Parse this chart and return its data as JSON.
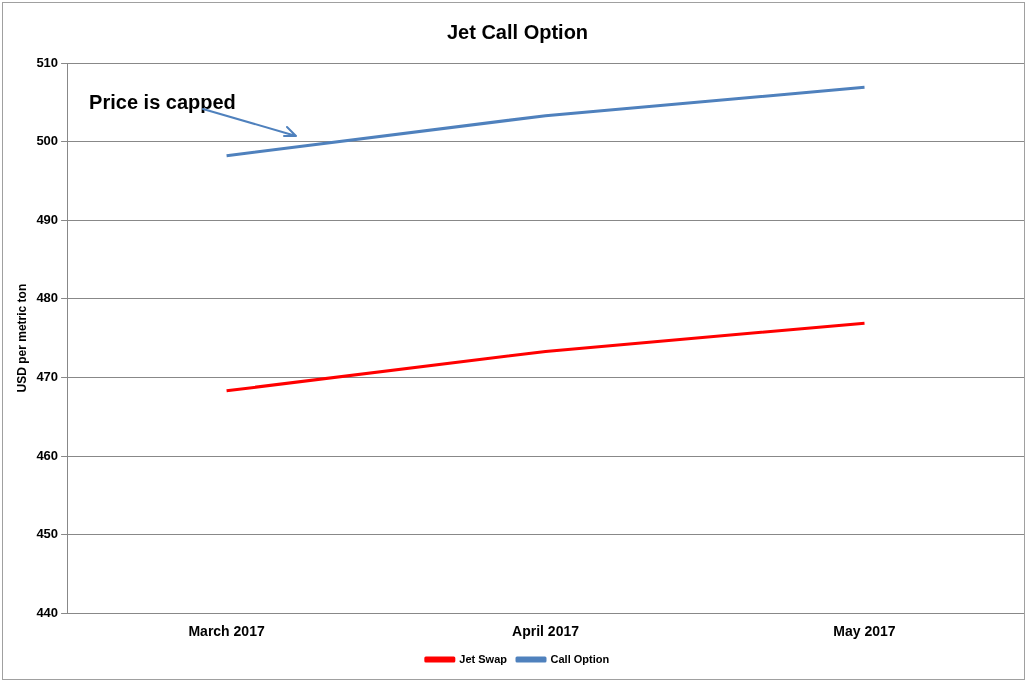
{
  "chart_data": {
    "type": "line",
    "title": "Jet Call Option",
    "ylabel": "USD per metric ton",
    "categories": [
      "March 2017",
      "April 2017",
      "May 2017"
    ],
    "series": [
      {
        "name": "Jet Swap",
        "color": "#ff0000",
        "values": [
          468.3,
          473.3,
          476.9
        ]
      },
      {
        "name": "Call Option",
        "color": "#4f81bd",
        "values": [
          498.2,
          503.3,
          506.9
        ]
      }
    ],
    "ylim": [
      440,
      510
    ],
    "yticks": [
      440,
      450,
      460,
      470,
      480,
      490,
      500,
      510
    ],
    "grid": "y",
    "legend": "bottom",
    "marker": "none",
    "annotations": [
      "Price is capped"
    ]
  }
}
